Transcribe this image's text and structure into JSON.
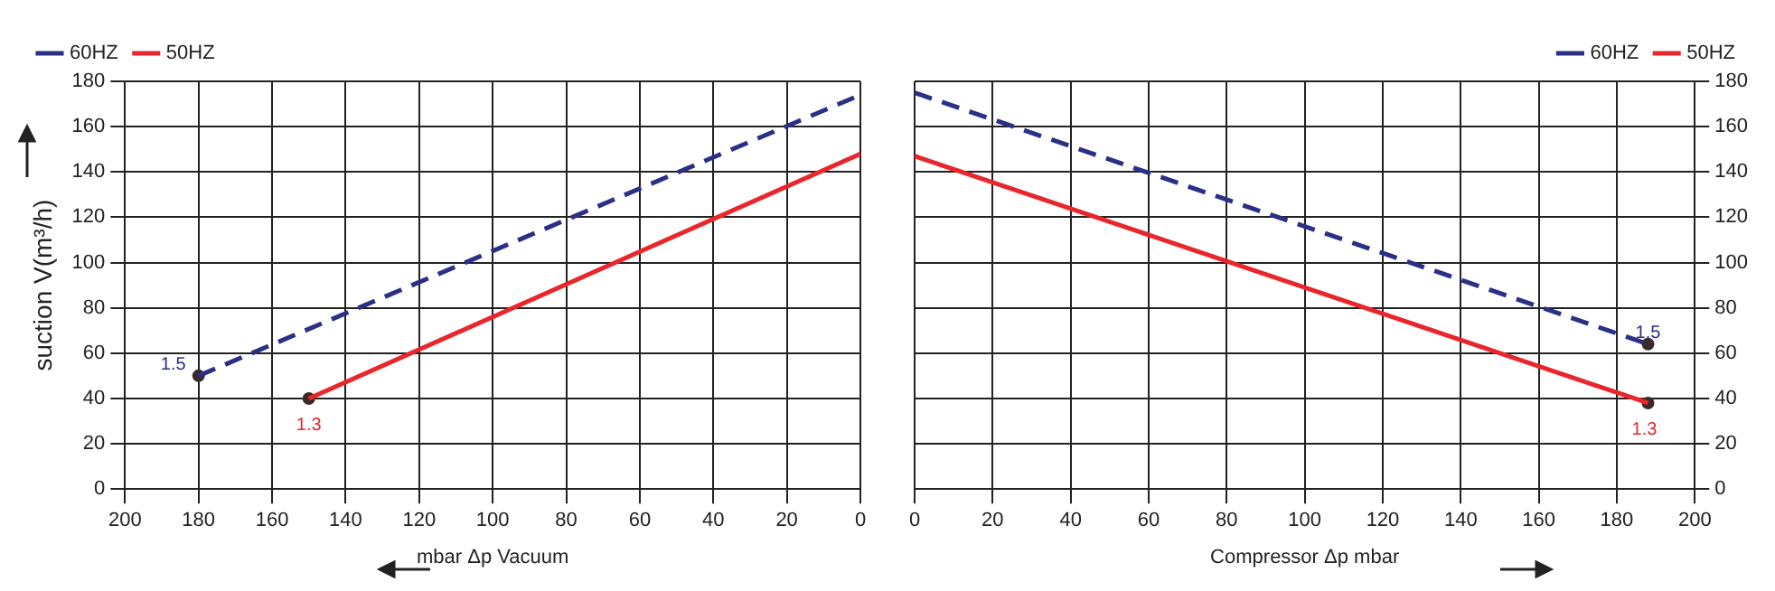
{
  "chart_data": [
    {
      "type": "line",
      "xlabel": "mbar Δp Vacuum",
      "ylabel": "suction V(m³/h)",
      "xlim": [
        200,
        0
      ],
      "xticks": [
        200,
        180,
        160,
        140,
        120,
        100,
        80,
        60,
        40,
        20,
        0
      ],
      "ylim": [
        0,
        180
      ],
      "yticks": [
        0,
        20,
        40,
        60,
        80,
        100,
        120,
        140,
        160,
        180
      ],
      "grid": true,
      "legend": "top left",
      "series": [
        {
          "name": "60HZ",
          "color": "#2b2f86",
          "x": [
            180,
            0
          ],
          "values": [
            50,
            174
          ],
          "line_style": "dashed"
        },
        {
          "name": "50HZ",
          "color": "#e8262b",
          "x": [
            150,
            0
          ],
          "values": [
            40,
            148
          ],
          "line_style": "solid"
        },
        {
          "type": "scatter",
          "color": "#3a2a2a",
          "x": [
            180,
            150
          ],
          "values": [
            50,
            40
          ],
          "marker": "circle"
        }
      ],
      "annotations": [
        {
          "text": "1.5",
          "x": 180,
          "y": 50
        },
        {
          "text": "1.3",
          "x": 150,
          "y": 40
        }
      ]
    },
    {
      "type": "line",
      "xlabel": "Compressor Δp mbar",
      "xlim": [
        0,
        200
      ],
      "xticks": [
        0,
        20,
        40,
        60,
        80,
        100,
        120,
        140,
        160,
        180,
        200
      ],
      "ylim": [
        0,
        180
      ],
      "yticks": [
        0,
        20,
        40,
        60,
        80,
        100,
        120,
        140,
        160,
        180
      ],
      "grid": true,
      "legend": "top right",
      "series": [
        {
          "name": "60HZ",
          "color": "#2b2f86",
          "x": [
            0,
            188
          ],
          "values": [
            175,
            64
          ],
          "line_style": "dashed"
        },
        {
          "name": "50HZ",
          "color": "#e8262b",
          "x": [
            0,
            188
          ],
          "values": [
            147,
            38
          ],
          "line_style": "solid"
        },
        {
          "type": "scatter",
          "color": "#3a2a2a",
          "x": [
            188,
            188
          ],
          "values": [
            64,
            38
          ],
          "marker": "circle"
        }
      ],
      "annotations": [
        {
          "text": "1.5",
          "x": 188,
          "y": 64
        },
        {
          "text": "1.3",
          "x": 188,
          "y": 38
        }
      ]
    }
  ]
}
